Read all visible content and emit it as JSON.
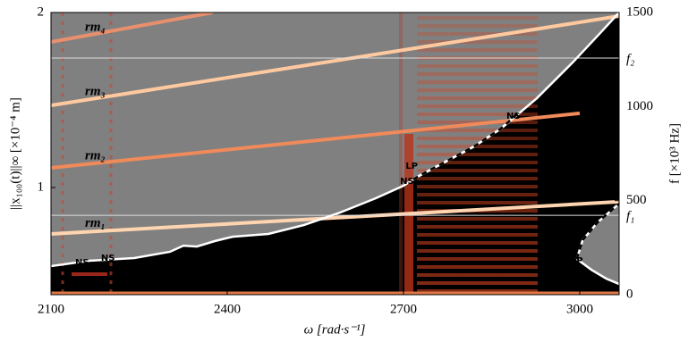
{
  "chart_data": {
    "type": "spectrogram",
    "xlabel": "ω [rad·s⁻¹]",
    "ylabel": "||x₁₀₀(t)||∞ [×10⁻⁴ m]",
    "y2label": "f [×10³ Hz]",
    "xlim": [
      2100,
      3067
    ],
    "ylim": [
      0.388,
      2
    ],
    "y2lim": [
      0,
      1500
    ],
    "xticks": [
      2100,
      2400,
      2700,
      3000
    ],
    "yticks": [
      1,
      2
    ],
    "y2ticks": [
      0,
      500,
      1000,
      1500
    ],
    "background": "#000000",
    "fill_above": "#808080",
    "region_fill": "#808080",
    "hlines": [
      {
        "label": "f₂",
        "value": 1258,
        "color": "#dddddd"
      },
      {
        "label": "f₁",
        "value": 422,
        "color": "#dddddd"
      }
    ],
    "series": [
      {
        "color": "#ffffff",
        "x": [
          2100,
          2165.5,
          2241.6,
          2302.5,
          2325.4,
          2348.2,
          2378.7,
          2409.1,
          2470,
          2530.9,
          2591.9,
          2652.8,
          2700,
          2728.9,
          2774.6,
          2820.3,
          2866,
          2926.9,
          2987.8,
          3033.5,
          3067
        ],
        "values": [
          0.551,
          0.582,
          0.597,
          0.633,
          0.668,
          0.663,
          0.694,
          0.719,
          0.735,
          0.786,
          0.857,
          0.939,
          1.01,
          1.071,
          1.153,
          1.235,
          1.337,
          1.51,
          1.714,
          1.878,
          2.0
        ]
      },
      {
        "color": "#000000",
        "dash": true,
        "x": [
          2716.8,
          2728.9,
          2774.6,
          2820.3,
          2866,
          2896.5
        ],
        "values": [
          1.046,
          1.071,
          1.153,
          1.235,
          1.337,
          1.429
        ]
      },
      {
        "color": "#ffffff",
        "x": [
          2995,
          3020,
          3045,
          3067
        ],
        "values": [
          0.592,
          0.53,
          0.48,
          0.449
        ]
      },
      {
        "color": "#000000",
        "dash": true,
        "x": [
          2995,
          3005,
          3030,
          3067
        ],
        "values": [
          0.592,
          0.7,
          0.8,
          0.908
        ]
      },
      {
        "name": "rm₄",
        "axis": "y2",
        "color": "#e8906e",
        "x": [
          2100,
          2375
        ],
        "values": [
          1343,
          1500
        ]
      },
      {
        "name": "rm₃",
        "axis": "y2",
        "color": "#ffc9a0",
        "x": [
          2100,
          3067
        ],
        "values": [
          1006,
          1481
        ]
      },
      {
        "name": "rm₂",
        "axis": "y2",
        "color": "#f08a5a",
        "x": [
          2100,
          3000
        ],
        "values": [
          674,
          964
        ]
      },
      {
        "name": "rm₁",
        "axis": "y2",
        "color": "#ffd4b0",
        "x": [
          2100,
          3067
        ],
        "values": [
          323,
          494
        ]
      }
    ],
    "annotations": [
      {
        "text": "NS",
        "x": 2153,
        "y": 0.571,
        "color": "#29a8e0"
      },
      {
        "text": "NS",
        "x": 2197,
        "y": 0.597,
        "color": "#29a8e0"
      },
      {
        "text": "NS",
        "x": 2887,
        "y": 1.408,
        "color": "#29a8e0"
      },
      {
        "text": "LP",
        "x": 2714,
        "y": 1.122,
        "color": "#f5c518"
      },
      {
        "text": "NS",
        "x": 2706,
        "y": 1.036,
        "color": "#29a8e0"
      },
      {
        "text": "LP",
        "x": 2995,
        "y": 0.582,
        "color": "#f5c518"
      }
    ]
  }
}
